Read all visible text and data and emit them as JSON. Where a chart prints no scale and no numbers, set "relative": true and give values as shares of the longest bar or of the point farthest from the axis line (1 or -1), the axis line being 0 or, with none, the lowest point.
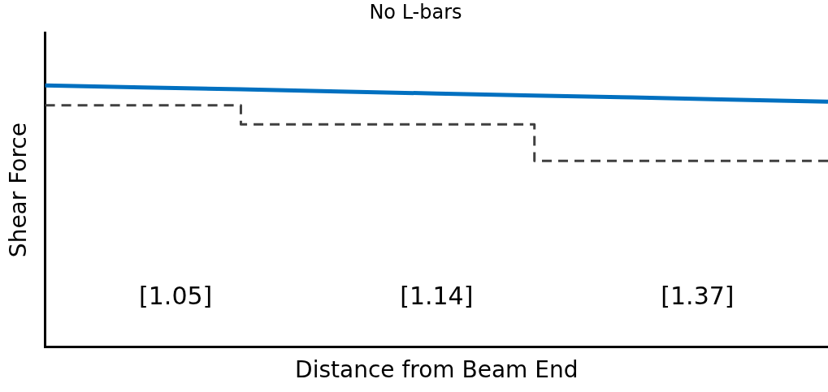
{
  "chart_data": {
    "type": "line",
    "title": "No L-bars",
    "xlabel": "Distance from Beam End",
    "ylabel": "Shear Force",
    "relative": true,
    "legend": false,
    "grid": false,
    "marker": "none",
    "categories": [
      null,
      null,
      null,
      null,
      null,
      null,
      null,
      null,
      null
    ],
    "series": [
      {
        "color": "#0070c0",
        "line_style": "solid",
        "values": [
          1,
          0.992,
          0.985,
          0.977,
          0.969,
          0.961,
          0.954,
          0.946,
          0.938
        ]
      },
      {
        "type": "step",
        "color": "#404040",
        "line_style": "dashed",
        "values": [
          0.924,
          0.924,
          0.924,
          0.851,
          0.851,
          0.851,
          0.711,
          0.711,
          0.711
        ]
      }
    ],
    "annotations": [
      "[1.05]",
      "[1.14]",
      "[1.37]"
    ]
  }
}
